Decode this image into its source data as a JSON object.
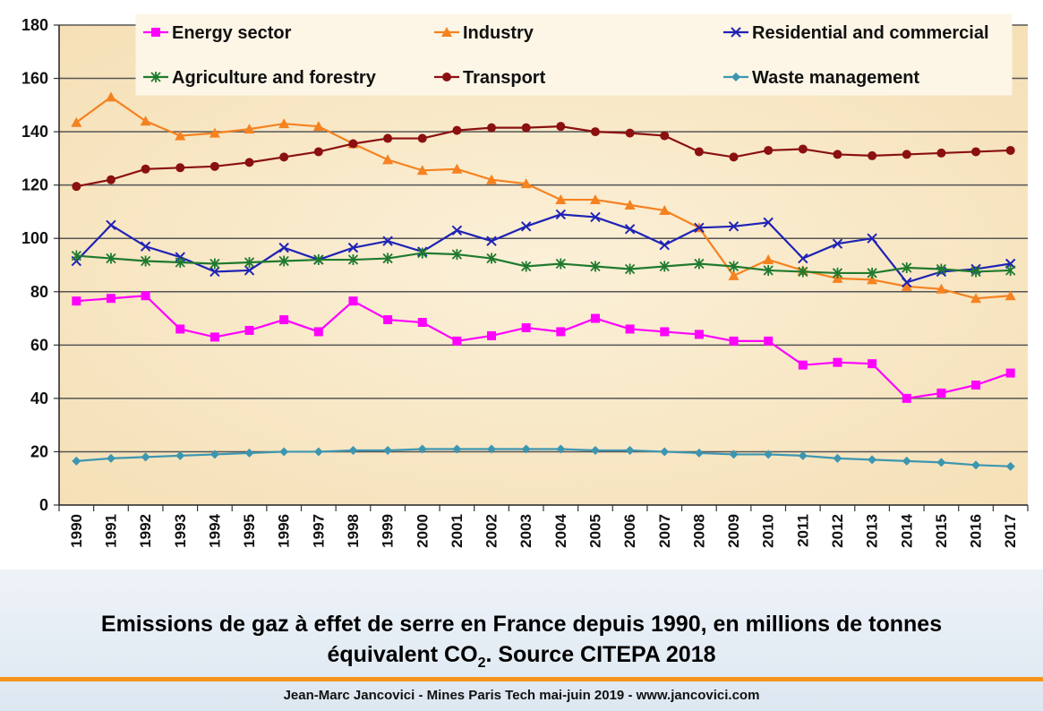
{
  "caption": {
    "line1": "Emissions de gaz à effet de serre en France depuis 1990, en millions de tonnes",
    "line2_pre": "équivalent CO",
    "line2_sub": "2",
    "line2_post": ". Source CITEPA 2018"
  },
  "credit": "Jean-Marc Jancovici - Mines Paris Tech mai-juin 2019 - www.jancovici.com",
  "chart_data": {
    "type": "line",
    "title": "",
    "xlabel": "",
    "ylabel": "",
    "x": [
      "1990",
      "1991",
      "1992",
      "1993",
      "1994",
      "1995",
      "1996",
      "1997",
      "1998",
      "1999",
      "2000",
      "2001",
      "2002",
      "2003",
      "2004",
      "2005",
      "2006",
      "2007",
      "2008",
      "2009",
      "2010",
      "2011",
      "2012",
      "2013",
      "2014",
      "2015",
      "2016",
      "2017"
    ],
    "ylim": [
      0,
      180
    ],
    "yticks": [
      0,
      20,
      40,
      60,
      80,
      100,
      120,
      140,
      160,
      180
    ],
    "grid": true,
    "legend_position": "top",
    "series": [
      {
        "name": "Energy sector",
        "color": "#ff00ff",
        "marker": "square",
        "values": [
          76.5,
          77.5,
          78.5,
          66,
          63,
          65.5,
          69.5,
          65,
          76.5,
          69.5,
          68.5,
          61.5,
          63.5,
          66.5,
          65,
          70,
          66,
          65,
          64,
          61.5,
          61.5,
          52.5,
          53.5,
          53,
          40,
          42,
          45,
          49.5
        ]
      },
      {
        "name": "Industry",
        "color": "#f58220",
        "marker": "triangle",
        "values": [
          143.5,
          153,
          144,
          138.5,
          139.5,
          141,
          143,
          142,
          135.5,
          129.5,
          125.5,
          126,
          122,
          120.5,
          114.5,
          114.5,
          112.5,
          110.5,
          104,
          86,
          92,
          88,
          85,
          84.5,
          82,
          81,
          77.5,
          78.5
        ]
      },
      {
        "name": "Residential and commercial",
        "color": "#1f23b4",
        "marker": "x",
        "values": [
          91.5,
          105,
          97,
          93,
          87.5,
          88,
          96.5,
          92,
          96.5,
          99,
          95,
          103,
          99,
          104.5,
          109,
          108,
          103.5,
          97.5,
          104,
          104.5,
          106,
          92.5,
          98,
          100,
          83.5,
          87.5,
          88.5,
          90.5
        ]
      },
      {
        "name": "Agriculture and forestry",
        "color": "#1f7a2e",
        "marker": "asterisk",
        "values": [
          93.5,
          92.5,
          91.5,
          91,
          90.5,
          91,
          91.5,
          92,
          92,
          92.5,
          94.5,
          94,
          92.5,
          89.5,
          90.5,
          89.5,
          88.5,
          89.5,
          90.5,
          89.5,
          88,
          87.5,
          87,
          87,
          89,
          88.5,
          87.5,
          88
        ]
      },
      {
        "name": "Transport",
        "color": "#8b1010",
        "marker": "circle",
        "values": [
          119.5,
          122,
          126,
          126.5,
          127,
          128.5,
          130.5,
          132.5,
          135.5,
          137.5,
          137.5,
          140.5,
          141.5,
          141.5,
          142,
          140,
          139.5,
          138.5,
          132.5,
          130.5,
          133,
          133.5,
          131.5,
          131,
          131.5,
          132,
          132.5,
          133
        ]
      },
      {
        "name": "Waste management",
        "color": "#3d96b0",
        "marker": "diamond",
        "values": [
          16.5,
          17.5,
          18,
          18.5,
          19,
          19.5,
          20,
          20,
          20.5,
          20.5,
          21,
          21,
          21,
          21,
          21,
          20.5,
          20.5,
          20,
          19.5,
          19,
          19,
          18.5,
          17.5,
          17,
          16.5,
          16,
          15,
          14.5
        ]
      }
    ]
  }
}
